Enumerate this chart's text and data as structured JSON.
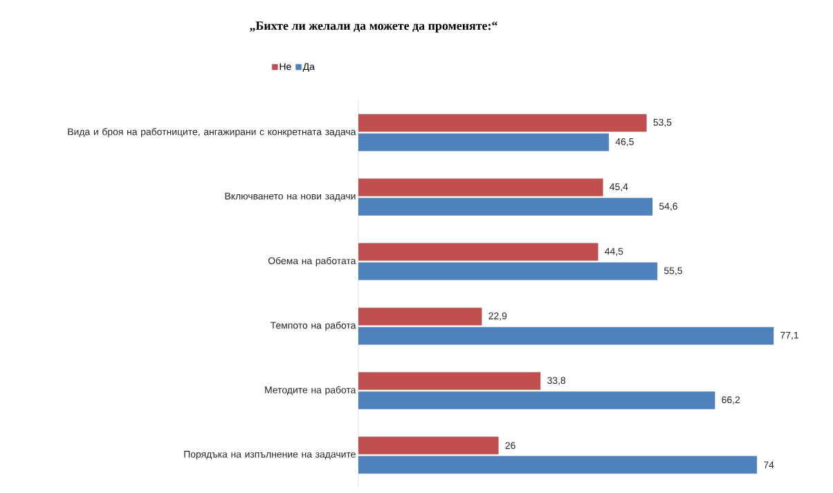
{
  "chart_data": {
    "type": "bar",
    "orientation": "horizontal",
    "title": "„Бихте ли желали да можете да променяте:“",
    "categories": [
      "Вида и броя на работниците, ангажирани с конкретната задача",
      "Включването на нови задачи",
      "Обема на работата",
      "Темпото на работа",
      "Методите на работа",
      "Порядъка на изпълнение на задачите"
    ],
    "series": [
      {
        "name": "Не",
        "color": "#c0504d",
        "values": [
          53.5,
          45.4,
          44.5,
          22.9,
          33.8,
          26
        ],
        "value_labels": [
          "53,5",
          "45,4",
          "44,5",
          "22,9",
          "33,8",
          "26"
        ]
      },
      {
        "name": "Да",
        "color": "#4f81bd",
        "values": [
          46.5,
          54.6,
          55.5,
          77.1,
          66.2,
          74
        ],
        "value_labels": [
          "46,5",
          "54,6",
          "55,5",
          "77,1",
          "66,2",
          "74"
        ]
      }
    ],
    "tick_labels": "y",
    "legend": "top"
  }
}
